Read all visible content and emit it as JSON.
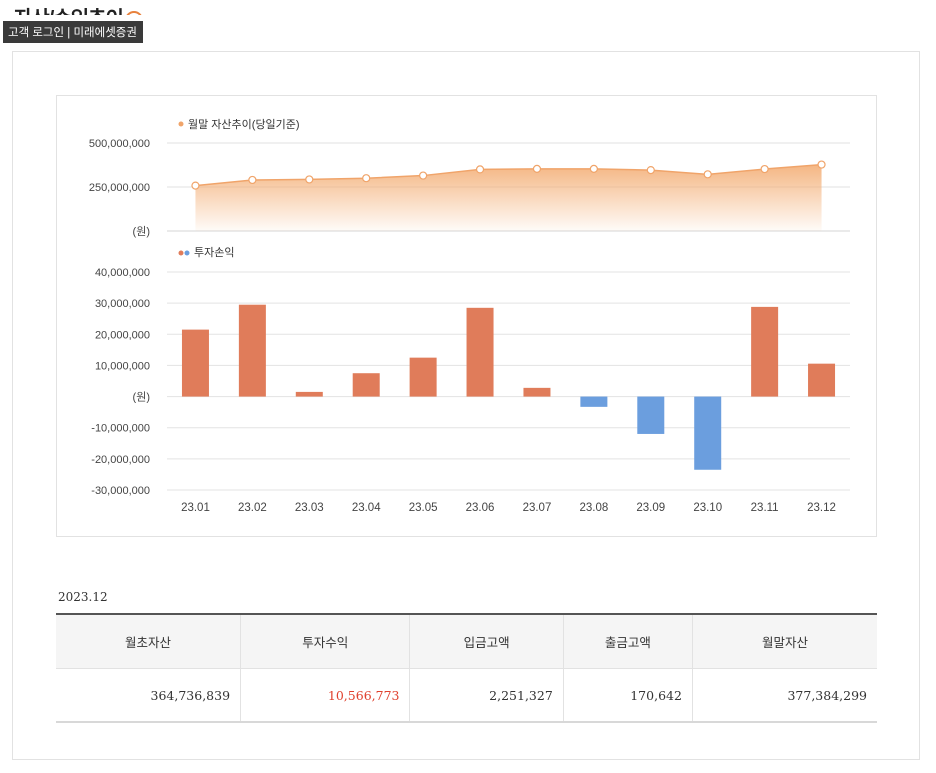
{
  "page": {
    "heading": "자산/수익추이",
    "heading_icon": "info-icon",
    "tooltip": "고객 로그인 | 미래에셋증권"
  },
  "colors": {
    "asset": "#f0a46a",
    "asset_fill_top": "#f4b27c",
    "profit_positive": "#e07c5a",
    "profit_negative": "#6b9ede",
    "profit_text": "#e0412e"
  },
  "chart_data": [
    {
      "type": "area",
      "title": "",
      "legend": "월말 자산추이(당일기준)",
      "unit_label": "(원)",
      "categories": [
        "23.01",
        "23.02",
        "23.03",
        "23.04",
        "23.05",
        "23.06",
        "23.07",
        "23.08",
        "23.09",
        "23.10",
        "23.11",
        "23.12"
      ],
      "values": [
        258000000,
        290000000,
        293000000,
        300000000,
        315000000,
        350000000,
        353000000,
        353000000,
        346000000,
        322000000,
        352000000,
        377384299
      ],
      "y_ticks": [
        {
          "value": 500000000,
          "label": "500,000,000"
        },
        {
          "value": 250000000,
          "label": "250,000,000"
        }
      ],
      "ylim": [
        0,
        500000000
      ],
      "grid": true
    },
    {
      "type": "bar",
      "title": "",
      "legend": "투자손익",
      "unit_label": "(원)",
      "categories": [
        "23.01",
        "23.02",
        "23.03",
        "23.04",
        "23.05",
        "23.06",
        "23.07",
        "23.08",
        "23.09",
        "23.10",
        "23.11",
        "23.12"
      ],
      "values": [
        21500000,
        29500000,
        1500000,
        7500000,
        12500000,
        28500000,
        2800000,
        -3300000,
        -12000000,
        -23500000,
        28800000,
        10566773
      ],
      "y_ticks": [
        {
          "value": 40000000,
          "label": "40,000,000"
        },
        {
          "value": 30000000,
          "label": "30,000,000"
        },
        {
          "value": 20000000,
          "label": "20,000,000"
        },
        {
          "value": 10000000,
          "label": "10,000,000"
        },
        {
          "value": 0,
          "label": "(원)"
        },
        {
          "value": -10000000,
          "label": "-10,000,000"
        },
        {
          "value": -20000000,
          "label": "-20,000,000"
        },
        {
          "value": -30000000,
          "label": "-30,000,000"
        }
      ],
      "ylim": [
        -30000000,
        40000000
      ],
      "grid": true
    }
  ],
  "summary": {
    "period": "2023.12",
    "headers": [
      "월초자산",
      "투자수익",
      "입금고액",
      "출금고액",
      "월말자산"
    ],
    "values": [
      "364,736,839",
      "10,566,773",
      "2,251,327",
      "170,642",
      "377,384,299"
    ]
  }
}
